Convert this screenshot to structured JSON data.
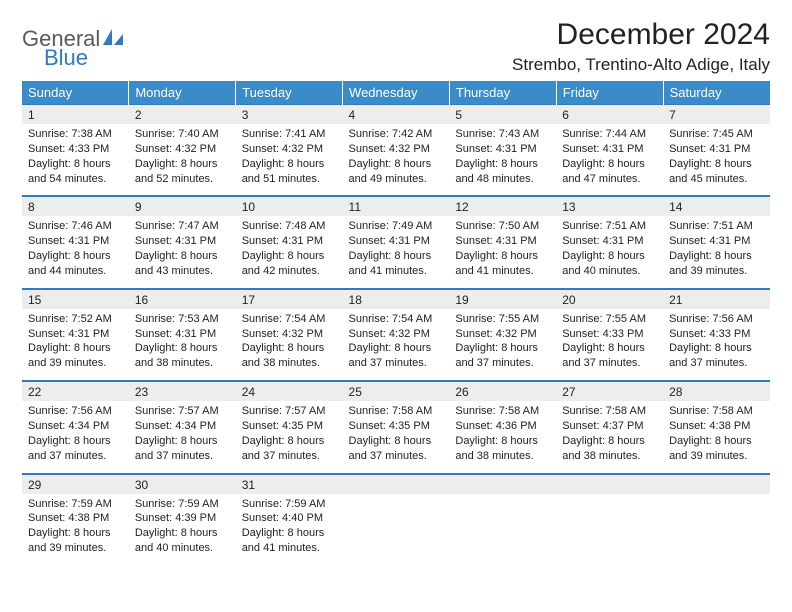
{
  "brand": {
    "top": "General",
    "bottom": "Blue"
  },
  "title": "December 2024",
  "location": "Strembo, Trentino-Alto Adige, Italy",
  "colors": {
    "header_bg": "#3b8bc8",
    "header_text": "#ffffff",
    "rule": "#2f7ac0",
    "date_bg": "#eceded",
    "body_text": "#222222",
    "logo_gray": "#5a5a5a",
    "logo_blue": "#2f7ac0",
    "page_bg": "#ffffff"
  },
  "typography": {
    "title_fontsize": 30,
    "location_fontsize": 17,
    "dow_fontsize": 13,
    "date_fontsize": 12,
    "detail_fontsize": 11,
    "logo_fontsize": 22
  },
  "days_of_week": [
    "Sunday",
    "Monday",
    "Tuesday",
    "Wednesday",
    "Thursday",
    "Friday",
    "Saturday"
  ],
  "days": [
    {
      "n": "1",
      "sunrise": "7:38 AM",
      "sunset": "4:33 PM",
      "day_h": 8,
      "day_m": 54
    },
    {
      "n": "2",
      "sunrise": "7:40 AM",
      "sunset": "4:32 PM",
      "day_h": 8,
      "day_m": 52
    },
    {
      "n": "3",
      "sunrise": "7:41 AM",
      "sunset": "4:32 PM",
      "day_h": 8,
      "day_m": 51
    },
    {
      "n": "4",
      "sunrise": "7:42 AM",
      "sunset": "4:32 PM",
      "day_h": 8,
      "day_m": 49
    },
    {
      "n": "5",
      "sunrise": "7:43 AM",
      "sunset": "4:31 PM",
      "day_h": 8,
      "day_m": 48
    },
    {
      "n": "6",
      "sunrise": "7:44 AM",
      "sunset": "4:31 PM",
      "day_h": 8,
      "day_m": 47
    },
    {
      "n": "7",
      "sunrise": "7:45 AM",
      "sunset": "4:31 PM",
      "day_h": 8,
      "day_m": 45
    },
    {
      "n": "8",
      "sunrise": "7:46 AM",
      "sunset": "4:31 PM",
      "day_h": 8,
      "day_m": 44
    },
    {
      "n": "9",
      "sunrise": "7:47 AM",
      "sunset": "4:31 PM",
      "day_h": 8,
      "day_m": 43
    },
    {
      "n": "10",
      "sunrise": "7:48 AM",
      "sunset": "4:31 PM",
      "day_h": 8,
      "day_m": 42
    },
    {
      "n": "11",
      "sunrise": "7:49 AM",
      "sunset": "4:31 PM",
      "day_h": 8,
      "day_m": 41
    },
    {
      "n": "12",
      "sunrise": "7:50 AM",
      "sunset": "4:31 PM",
      "day_h": 8,
      "day_m": 41
    },
    {
      "n": "13",
      "sunrise": "7:51 AM",
      "sunset": "4:31 PM",
      "day_h": 8,
      "day_m": 40
    },
    {
      "n": "14",
      "sunrise": "7:51 AM",
      "sunset": "4:31 PM",
      "day_h": 8,
      "day_m": 39
    },
    {
      "n": "15",
      "sunrise": "7:52 AM",
      "sunset": "4:31 PM",
      "day_h": 8,
      "day_m": 39
    },
    {
      "n": "16",
      "sunrise": "7:53 AM",
      "sunset": "4:31 PM",
      "day_h": 8,
      "day_m": 38
    },
    {
      "n": "17",
      "sunrise": "7:54 AM",
      "sunset": "4:32 PM",
      "day_h": 8,
      "day_m": 38
    },
    {
      "n": "18",
      "sunrise": "7:54 AM",
      "sunset": "4:32 PM",
      "day_h": 8,
      "day_m": 37
    },
    {
      "n": "19",
      "sunrise": "7:55 AM",
      "sunset": "4:32 PM",
      "day_h": 8,
      "day_m": 37
    },
    {
      "n": "20",
      "sunrise": "7:55 AM",
      "sunset": "4:33 PM",
      "day_h": 8,
      "day_m": 37
    },
    {
      "n": "21",
      "sunrise": "7:56 AM",
      "sunset": "4:33 PM",
      "day_h": 8,
      "day_m": 37
    },
    {
      "n": "22",
      "sunrise": "7:56 AM",
      "sunset": "4:34 PM",
      "day_h": 8,
      "day_m": 37
    },
    {
      "n": "23",
      "sunrise": "7:57 AM",
      "sunset": "4:34 PM",
      "day_h": 8,
      "day_m": 37
    },
    {
      "n": "24",
      "sunrise": "7:57 AM",
      "sunset": "4:35 PM",
      "day_h": 8,
      "day_m": 37
    },
    {
      "n": "25",
      "sunrise": "7:58 AM",
      "sunset": "4:35 PM",
      "day_h": 8,
      "day_m": 37
    },
    {
      "n": "26",
      "sunrise": "7:58 AM",
      "sunset": "4:36 PM",
      "day_h": 8,
      "day_m": 38
    },
    {
      "n": "27",
      "sunrise": "7:58 AM",
      "sunset": "4:37 PM",
      "day_h": 8,
      "day_m": 38
    },
    {
      "n": "28",
      "sunrise": "7:58 AM",
      "sunset": "4:38 PM",
      "day_h": 8,
      "day_m": 39
    },
    {
      "n": "29",
      "sunrise": "7:59 AM",
      "sunset": "4:38 PM",
      "day_h": 8,
      "day_m": 39
    },
    {
      "n": "30",
      "sunrise": "7:59 AM",
      "sunset": "4:39 PM",
      "day_h": 8,
      "day_m": 40
    },
    {
      "n": "31",
      "sunrise": "7:59 AM",
      "sunset": "4:40 PM",
      "day_h": 8,
      "day_m": 41
    }
  ],
  "labels": {
    "sunrise": "Sunrise:",
    "sunset": "Sunset:",
    "daylight_prefix": "Daylight:",
    "hours_word": "hours",
    "and_word": "and",
    "minutes_word": "minutes."
  },
  "grid": {
    "columns": 7,
    "first_day_column": 0,
    "total_days": 31,
    "weeks": 5
  }
}
